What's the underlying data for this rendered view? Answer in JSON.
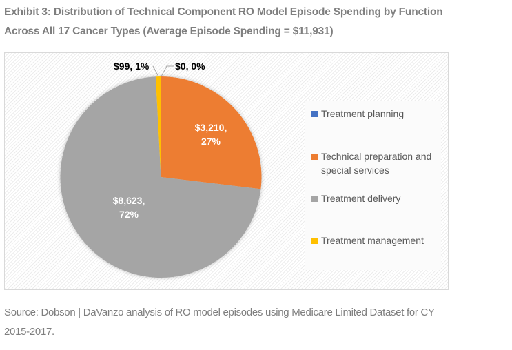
{
  "title_line1": "Exhibit 3: Distribution of Technical Component RO Model Episode Spending by Function",
  "title_line2": "Across All 17 Cancer Types (Average Episode Spending = $11,931)",
  "footer_line1": "Source: Dobson | DaVanzo analysis of RO model episodes using Medicare Limited Dataset for CY",
  "footer_line2": "2015-2017.",
  "chart_data": {
    "type": "pie",
    "title": "Exhibit 3: Distribution of Technical Component RO Model Episode Spending by Function Across All 17 Cancer Types (Average Episode Spending = $11,931)",
    "total": 11931,
    "start_angle": "top, clockwise",
    "legend_position": "right",
    "slices": [
      {
        "name": "Treatment planning",
        "value": 0,
        "percent": 0,
        "label_line1": "$0, 0%",
        "label_line2": "",
        "color": "#4472c4",
        "label_color": "#000000"
      },
      {
        "name": "Technical preparation and special services",
        "value": 3210,
        "percent": 27,
        "label_line1": "$3,210,",
        "label_line2": "27%",
        "color": "#ed7d31",
        "label_color": "#ffffff"
      },
      {
        "name": "Treatment delivery",
        "value": 8623,
        "percent": 72,
        "label_line1": "$8,623,",
        "label_line2": "72%",
        "color": "#a5a5a5",
        "label_color": "#ffffff"
      },
      {
        "name": "Treatment management",
        "value": 99,
        "percent": 1,
        "label_line1": "$99, 1%",
        "label_line2": "",
        "color": "#ffc000",
        "label_color": "#000000"
      }
    ]
  },
  "legend": {
    "items": [
      {
        "label": "Treatment planning",
        "color": "#4472c4"
      },
      {
        "label": "Technical preparation and special services",
        "color": "#ed7d31"
      },
      {
        "label": "Treatment delivery",
        "color": "#a5a5a5"
      },
      {
        "label": "Treatment management",
        "color": "#ffc000"
      }
    ]
  }
}
